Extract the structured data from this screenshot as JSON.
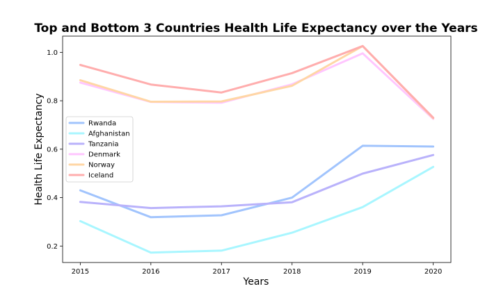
{
  "chart_data": {
    "type": "line",
    "title": "Top and Bottom 3 Countries Health Life Expectancy over the Years",
    "xlabel": "Years",
    "ylabel": "Health Life Expectancy",
    "x": [
      2015,
      2016,
      2017,
      2018,
      2019,
      2020
    ],
    "xlim": [
      2014.75,
      2020.25
    ],
    "ylim": [
      0.132,
      1.067
    ],
    "yticks": [
      0.2,
      0.4,
      0.6,
      0.8,
      1.0
    ],
    "ytick_labels": [
      "0.2",
      "0.4",
      "0.6",
      "0.8",
      "1.0"
    ],
    "xtick_labels": [
      "2015",
      "2016",
      "2017",
      "2018",
      "2019",
      "2020"
    ],
    "grid": false,
    "legend_position": "center-left",
    "series": [
      {
        "name": "Rwanda",
        "color": "#a1c4fd",
        "values": [
          0.43,
          0.319,
          0.327,
          0.4,
          0.614,
          0.611
        ]
      },
      {
        "name": "Afghanistan",
        "color": "#a8f6ff",
        "values": [
          0.303,
          0.173,
          0.181,
          0.255,
          0.361,
          0.527
        ]
      },
      {
        "name": "Tanzania",
        "color": "#b9b2fb",
        "values": [
          0.382,
          0.357,
          0.364,
          0.381,
          0.499,
          0.576
        ]
      },
      {
        "name": "Denmark",
        "color": "#ffc6ff",
        "values": [
          0.875,
          0.795,
          0.792,
          0.868,
          0.996,
          0.725
        ]
      },
      {
        "name": "Norway",
        "color": "#ffd6a5",
        "values": [
          0.885,
          0.796,
          0.797,
          0.862,
          1.026,
          0.728
        ]
      },
      {
        "name": "Iceland",
        "color": "#ffadad",
        "values": [
          0.948,
          0.867,
          0.834,
          0.914,
          1.026,
          0.73
        ]
      }
    ]
  }
}
